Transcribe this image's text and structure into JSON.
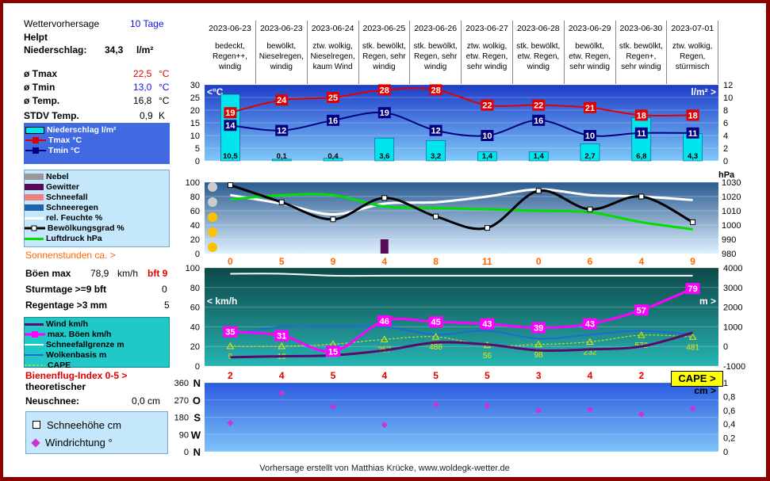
{
  "info": {
    "title": "Wettervorhersage",
    "days": "10 Tage",
    "location": "Helpt",
    "precip_label": "Niederschlag:",
    "precip_value": "34,3",
    "precip_unit": "l/m²",
    "tmax_label": "ø Tmax",
    "tmax_value": "22,5",
    "tmin_label": "ø Tmin",
    "tmin_value": "13,0",
    "tavg_label": "ø Temp.",
    "tavg_value": "16,8",
    "temp_unit": "°C",
    "stdv_label": "STDV Temp.",
    "stdv_value": "0,9",
    "stdv_unit": "K",
    "sun_label": "Sonnenstunden ca. >",
    "gust_label": "Böen max",
    "gust_value": "78,9",
    "gust_unit": "km/h",
    "gust_bft": "bft 9",
    "storm_label": "Sturmtage >=9 bft",
    "storm_value": "0",
    "rain_label": "Regentage >3 mm",
    "rain_value": "5",
    "bee_label": "Bienenflug-Index 0-5  >",
    "theory_label": "theoretischer",
    "snow_label": "Neuschnee:",
    "snow_value": "0,0  cm"
  },
  "legend_temp": [
    "Niederschlag l/m²",
    "Tmax °C",
    "Tmin °C"
  ],
  "legend_mid": [
    "Nebel",
    "Gewitter",
    "Schneefall",
    "Schneeregen",
    "rel. Feuchte %",
    "Bewölkungsgrad %",
    "Luftdruck hPa"
  ],
  "legend_wind": [
    "Wind km/h",
    "max. Böen km/h",
    "Schneefallgrenze m",
    "Wolkenbasis m",
    "CAPE"
  ],
  "legend_bottom": [
    "Schneehöhe cm",
    "Windrichtung °"
  ],
  "footer": "Vorhersage erstellt von Matthias Krücke, www.woldegk-wetter.de",
  "chart_data": {
    "type": "line",
    "days": [
      {
        "date": "2023-06-23",
        "desc": [
          "bedeckt,",
          "Regen++,",
          "windig"
        ]
      },
      {
        "date": "2023-06-23",
        "desc": [
          "bewölkt,",
          "Nieselregen,",
          "windig"
        ]
      },
      {
        "date": "2023-06-24",
        "desc": [
          "ztw. wolkig,",
          "Nieselregen,",
          "kaum Wind"
        ]
      },
      {
        "date": "2023-06-25",
        "desc": [
          "stk. bewölkt,",
          "Regen, sehr",
          "windig"
        ]
      },
      {
        "date": "2023-06-26",
        "desc": [
          "stk. bewölkt,",
          "Regen, sehr",
          "windig"
        ]
      },
      {
        "date": "2023-06-27",
        "desc": [
          "ztw. wolkig,",
          "etw. Regen,",
          "sehr windig"
        ]
      },
      {
        "date": "2023-06-28",
        "desc": [
          "stk. bewölkt,",
          "etw. Regen,",
          "windig"
        ]
      },
      {
        "date": "2023-06-29",
        "desc": [
          "bewölkt,",
          "etw. Regen,",
          "sehr windig"
        ]
      },
      {
        "date": "2023-06-30",
        "desc": [
          "stk. bewölkt,",
          "Regen+,",
          "sehr windig"
        ]
      },
      {
        "date": "2023-07-01",
        "desc": [
          "ztw. wolkig,",
          "Regen,",
          "stürmisch"
        ]
      }
    ],
    "temperature": {
      "left_unit": "<°C",
      "right_unit": "l/m² >",
      "ylim": [
        0,
        30
      ],
      "yticks": [
        0,
        5,
        10,
        15,
        20,
        25,
        30
      ],
      "y2lim": [
        0,
        12
      ],
      "y2ticks": [
        0,
        2,
        4,
        6,
        8,
        10,
        12
      ],
      "tmax": [
        19,
        24,
        25,
        28,
        28,
        22,
        22,
        21,
        18,
        18
      ],
      "tmin": [
        14,
        12,
        16,
        19,
        12,
        10,
        16,
        10,
        11,
        11
      ],
      "precip": [
        10.5,
        0.1,
        0.4,
        3.6,
        3.2,
        1.4,
        1.4,
        2.7,
        6.8,
        4.3
      ],
      "precip_labels": [
        "10,5",
        "0,1",
        "0,4",
        "3,6",
        "3,2",
        "1,4",
        "1,4",
        "2,7",
        "6,8",
        "4,3"
      ]
    },
    "clouds": {
      "right_unit": "hPa",
      "ylim": [
        0,
        100
      ],
      "yticks": [
        0,
        20,
        40,
        60,
        80,
        100
      ],
      "y2lim": [
        980,
        1030
      ],
      "y2ticks": [
        980,
        990,
        1000,
        1010,
        1020,
        1030
      ],
      "cloud_cover": [
        96,
        72,
        48,
        78,
        52,
        36,
        88,
        62,
        80,
        44
      ],
      "humidity": [
        82,
        70,
        55,
        70,
        72,
        80,
        90,
        82,
        80,
        75
      ],
      "pressure": [
        1018,
        1021,
        1021,
        1013,
        1012,
        1011,
        1010,
        1009,
        1002,
        997
      ],
      "thunderstorm": [
        0,
        0,
        0,
        20,
        0,
        0,
        0,
        0,
        0,
        0
      ],
      "sunshine_hours": [
        0,
        5,
        9,
        4,
        8,
        11,
        0,
        6,
        4,
        9
      ]
    },
    "wind": {
      "left_unit": "< km/h",
      "right_unit": "m >",
      "ylim": [
        0,
        100
      ],
      "yticks": [
        0,
        20,
        40,
        60,
        80,
        100
      ],
      "y2lim": [
        -1000,
        4000
      ],
      "y2ticks": [
        -1000,
        0,
        1000,
        2000,
        3000,
        4000
      ],
      "gusts": [
        35,
        31,
        15,
        46,
        45,
        43,
        39,
        43,
        57,
        79
      ],
      "wind": [
        9,
        10,
        11,
        16,
        24,
        22,
        16,
        17,
        20,
        34
      ],
      "snowline": [
        3700,
        3700,
        3600,
        3600,
        3600,
        3600,
        3600,
        3600,
        3600,
        3600
      ],
      "cloudbase": [
        600,
        1000,
        1000,
        1000,
        600,
        800,
        400,
        600,
        800,
        600
      ],
      "cape": [
        9,
        10,
        114,
        357,
        488,
        56,
        98,
        232,
        572,
        481
      ],
      "bee_index": [
        2,
        4,
        5,
        4,
        5,
        5,
        3,
        4,
        2,
        2
      ]
    },
    "direction": {
      "dir_ticks": [
        "0",
        "90",
        "180",
        "270",
        "360"
      ],
      "compass": [
        "N",
        "W",
        "S",
        "O",
        "N"
      ],
      "right_unit": "cm >",
      "y2ticks": [
        "0",
        "0,2",
        "0,4",
        "0,6",
        "0,8",
        "1"
      ],
      "wind_dir": [
        150,
        305,
        235,
        140,
        245,
        240,
        215,
        220,
        195,
        225
      ]
    },
    "cape_badge": "CAPE >"
  }
}
